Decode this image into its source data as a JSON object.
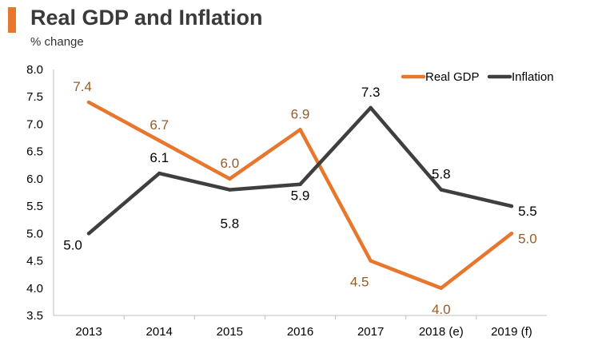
{
  "header": {
    "title": "Real GDP and Inflation",
    "subtitle": "% change"
  },
  "colors": {
    "accent": "#E8772E",
    "gdp": "#E8772E",
    "gdp_label": "#9A5A22",
    "inflation": "#3F3F3F",
    "inflation_label": "#000000",
    "axis": "#BFBFBF"
  },
  "chart_data": {
    "type": "line",
    "title": "Real GDP and Inflation",
    "ylabel": "% change",
    "xlabel": "",
    "categories": [
      "2013",
      "2014",
      "2015",
      "2016",
      "2017",
      "2018 (e)",
      "2019 (f)"
    ],
    "ylim": [
      3.5,
      8.0
    ],
    "yticks": [
      "3.5",
      "4.0",
      "4.5",
      "5.0",
      "5.5",
      "6.0",
      "6.5",
      "7.0",
      "7.5",
      "8.0"
    ],
    "legend_position": "top-right",
    "grid": false,
    "series": [
      {
        "name": "Real GDP",
        "values": [
          7.4,
          6.7,
          6.0,
          6.9,
          4.5,
          4.0,
          5.0
        ],
        "labels": [
          "7.4",
          "6.7",
          "6.0",
          "6.9",
          "4.5",
          "4.0",
          "5.0"
        ]
      },
      {
        "name": "Inflation",
        "values": [
          5.0,
          6.1,
          5.8,
          5.9,
          7.3,
          5.8,
          5.5
        ],
        "labels": [
          "5.0",
          "6.1",
          "5.8",
          "5.9",
          "7.3",
          "5.8",
          "5.5"
        ]
      }
    ]
  }
}
